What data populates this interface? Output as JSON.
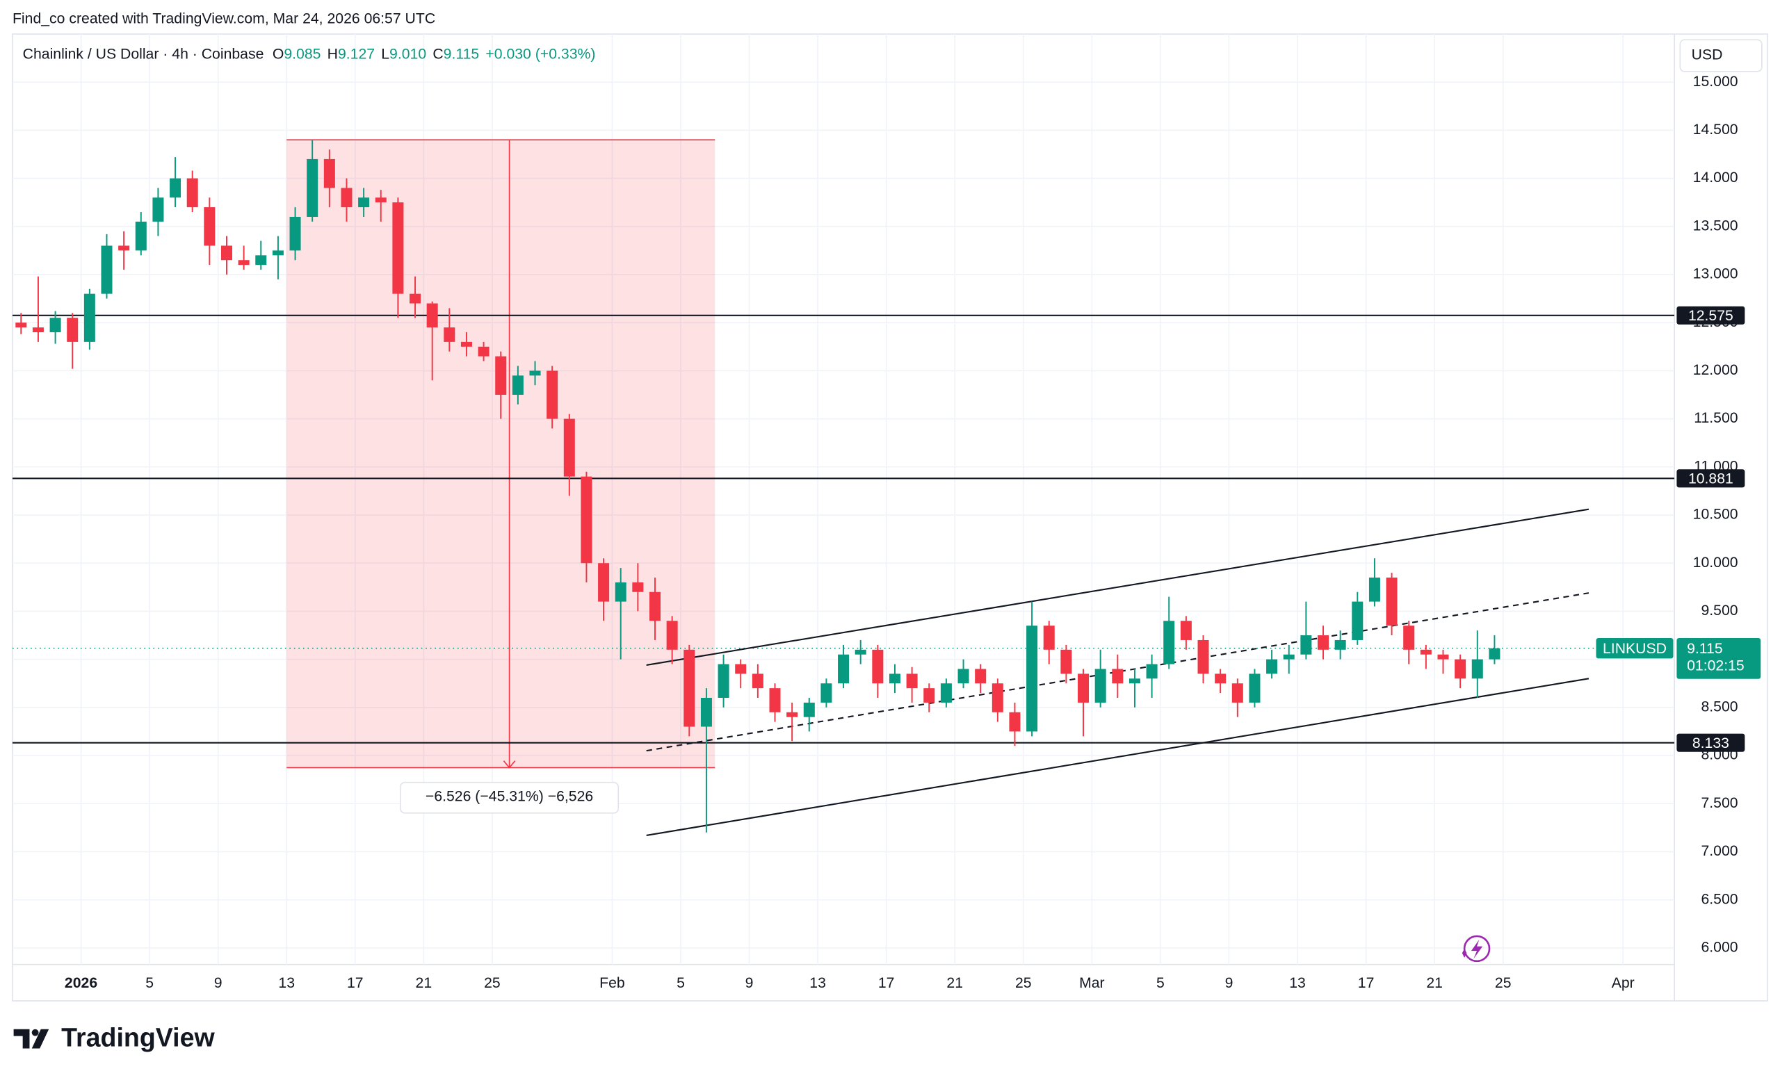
{
  "watermark": "Find_co created with TradingView.com, Mar 24, 2026 06:57 UTC",
  "brand": "TradingView",
  "chart_data": {
    "type": "candlestick",
    "legend": {
      "symbol": "Chainlink / US Dollar · 4h · Coinbase",
      "o_label": "O",
      "o": "9.085",
      "h_label": "H",
      "h": "9.127",
      "l_label": "L",
      "l": "9.010",
      "c_label": "C",
      "c": "9.115",
      "change": "+0.030 (+0.33%)"
    },
    "currency": "USD",
    "up_color": "#089981",
    "down_color": "#f23645",
    "grid": true,
    "xlim": [
      "2025-12-28",
      "2026-04-04"
    ],
    "ylim": [
      5.45,
      15.5
    ],
    "xticks": [
      {
        "value": "2026-01-01",
        "label": "2026"
      },
      {
        "value": "2026-01-05",
        "label": "5"
      },
      {
        "value": "2026-01-09",
        "label": "9"
      },
      {
        "value": "2026-01-13",
        "label": "13"
      },
      {
        "value": "2026-01-17",
        "label": "17"
      },
      {
        "value": "2026-01-21",
        "label": "21"
      },
      {
        "value": "2026-01-25",
        "label": "25"
      },
      {
        "value": "2026-02-01",
        "label": "Feb"
      },
      {
        "value": "2026-02-05",
        "label": "5"
      },
      {
        "value": "2026-02-09",
        "label": "9"
      },
      {
        "value": "2026-02-13",
        "label": "13"
      },
      {
        "value": "2026-02-17",
        "label": "17"
      },
      {
        "value": "2026-02-21",
        "label": "21"
      },
      {
        "value": "2026-02-25",
        "label": "25"
      },
      {
        "value": "2026-03-01",
        "label": "Mar"
      },
      {
        "value": "2026-03-05",
        "label": "5"
      },
      {
        "value": "2026-03-09",
        "label": "9"
      },
      {
        "value": "2026-03-13",
        "label": "13"
      },
      {
        "value": "2026-03-17",
        "label": "17"
      },
      {
        "value": "2026-03-21",
        "label": "21"
      },
      {
        "value": "2026-03-25",
        "label": "25"
      },
      {
        "value": "2026-04-01",
        "label": "Apr"
      }
    ],
    "yticks": [
      {
        "value": 6,
        "label": "6.000"
      },
      {
        "value": 6.5,
        "label": "6.500"
      },
      {
        "value": 7,
        "label": "7.000"
      },
      {
        "value": 7.5,
        "label": "7.500"
      },
      {
        "value": 8,
        "label": "8.000"
      },
      {
        "value": 8.5,
        "label": "8.500"
      },
      {
        "value": 9,
        "label": "9.000"
      },
      {
        "value": 9.5,
        "label": "9.500"
      },
      {
        "value": 10,
        "label": "10.000"
      },
      {
        "value": 10.5,
        "label": "10.500"
      },
      {
        "value": 11,
        "label": "11.000"
      },
      {
        "value": 11.5,
        "label": "11.500"
      },
      {
        "value": 12,
        "label": "12.000"
      },
      {
        "value": 12.5,
        "label": "12.500"
      },
      {
        "value": 13,
        "label": "13.000"
      },
      {
        "value": 13.5,
        "label": "13.500"
      },
      {
        "value": 14,
        "label": "14.000"
      },
      {
        "value": 14.5,
        "label": "14.500"
      },
      {
        "value": 15,
        "label": "15.000"
      }
    ],
    "x": [
      "2025-12-28",
      "2025-12-29",
      "2025-12-30",
      "2025-12-31",
      "2026-01-01",
      "2026-01-02",
      "2026-01-03",
      "2026-01-04",
      "2026-01-05",
      "2026-01-06",
      "2026-01-07",
      "2026-01-08",
      "2026-01-09",
      "2026-01-10",
      "2026-01-11",
      "2026-01-12",
      "2026-01-13",
      "2026-01-14",
      "2026-01-15",
      "2026-01-16",
      "2026-01-17",
      "2026-01-18",
      "2026-01-19",
      "2026-01-20",
      "2026-01-21",
      "2026-01-22",
      "2026-01-23",
      "2026-01-24",
      "2026-01-25",
      "2026-01-26",
      "2026-01-27",
      "2026-01-28",
      "2026-01-29",
      "2026-01-30",
      "2026-01-31",
      "2026-02-01",
      "2026-02-02",
      "2026-02-03",
      "2026-02-04",
      "2026-02-05",
      "2026-02-06",
      "2026-02-07",
      "2026-02-08",
      "2026-02-09",
      "2026-02-10",
      "2026-02-11",
      "2026-02-12",
      "2026-02-13",
      "2026-02-14",
      "2026-02-15",
      "2026-02-16",
      "2026-02-17",
      "2026-02-18",
      "2026-02-19",
      "2026-02-20",
      "2026-02-21",
      "2026-02-22",
      "2026-02-23",
      "2026-02-24",
      "2026-02-25",
      "2026-02-26",
      "2026-02-27",
      "2026-02-28",
      "2026-03-01",
      "2026-03-02",
      "2026-03-03",
      "2026-03-04",
      "2026-03-05",
      "2026-03-06",
      "2026-03-07",
      "2026-03-08",
      "2026-03-09",
      "2026-03-10",
      "2026-03-11",
      "2026-03-12",
      "2026-03-13",
      "2026-03-14",
      "2026-03-15",
      "2026-03-16",
      "2026-03-17",
      "2026-03-18",
      "2026-03-19",
      "2026-03-20",
      "2026-03-21",
      "2026-03-22",
      "2026-03-23",
      "2026-03-24"
    ],
    "open": [
      12.5,
      12.45,
      12.4,
      12.55,
      12.3,
      12.8,
      13.3,
      13.25,
      13.55,
      13.8,
      14.0,
      13.7,
      13.3,
      13.15,
      13.1,
      13.2,
      13.25,
      13.6,
      14.2,
      13.9,
      13.7,
      13.8,
      13.75,
      12.8,
      12.7,
      12.45,
      12.3,
      12.25,
      12.15,
      11.75,
      11.95,
      12.0,
      11.5,
      10.9,
      10.0,
      9.6,
      9.8,
      9.7,
      9.4,
      9.1,
      8.3,
      8.6,
      8.95,
      8.85,
      8.7,
      8.45,
      8.4,
      8.55,
      8.75,
      9.05,
      9.1,
      8.75,
      8.85,
      8.7,
      8.55,
      8.75,
      8.9,
      8.75,
      8.45,
      8.25,
      9.35,
      9.1,
      8.85,
      8.55,
      8.9,
      8.75,
      8.8,
      8.95,
      9.4,
      9.2,
      8.85,
      8.75,
      8.55,
      8.85,
      9.0,
      9.05,
      9.25,
      9.1,
      9.2,
      9.6,
      9.85,
      9.35,
      9.1,
      9.05,
      9.0,
      8.8,
      9.0
    ],
    "high": [
      12.6,
      12.98,
      12.62,
      12.6,
      12.85,
      13.42,
      13.45,
      13.65,
      13.9,
      14.22,
      14.08,
      13.8,
      13.4,
      13.3,
      13.35,
      13.4,
      13.7,
      14.4,
      14.3,
      14.0,
      13.9,
      13.88,
      13.8,
      12.98,
      12.72,
      12.65,
      12.4,
      12.3,
      12.2,
      12.05,
      12.1,
      12.05,
      11.55,
      10.95,
      10.05,
      9.95,
      10.0,
      9.85,
      9.45,
      9.15,
      8.7,
      9.05,
      9.0,
      8.95,
      8.75,
      8.55,
      8.6,
      8.8,
      9.15,
      9.2,
      9.15,
      8.95,
      8.92,
      8.75,
      8.8,
      9.0,
      8.95,
      8.8,
      8.55,
      9.6,
      9.4,
      9.15,
      8.9,
      9.1,
      9.05,
      8.9,
      9.05,
      9.65,
      9.45,
      9.25,
      8.9,
      8.8,
      8.9,
      9.1,
      9.15,
      9.6,
      9.35,
      9.3,
      9.7,
      10.05,
      9.9,
      9.4,
      9.15,
      9.1,
      9.05,
      9.3,
      9.25
    ],
    "low": [
      12.38,
      12.3,
      12.28,
      12.02,
      12.22,
      12.75,
      13.05,
      13.2,
      13.4,
      13.7,
      13.65,
      13.1,
      13.0,
      13.05,
      13.05,
      12.95,
      13.15,
      13.55,
      13.7,
      13.55,
      13.6,
      13.55,
      12.55,
      12.55,
      11.9,
      12.2,
      12.15,
      12.1,
      11.5,
      11.65,
      11.85,
      11.4,
      10.7,
      9.8,
      9.4,
      9.0,
      9.5,
      9.2,
      8.95,
      8.2,
      7.2,
      8.5,
      8.7,
      8.6,
      8.35,
      8.15,
      8.25,
      8.5,
      8.7,
      8.95,
      8.6,
      8.65,
      8.55,
      8.45,
      8.5,
      8.7,
      8.65,
      8.35,
      8.1,
      8.2,
      8.95,
      8.75,
      8.2,
      8.5,
      8.6,
      8.5,
      8.6,
      8.9,
      9.1,
      8.75,
      8.65,
      8.4,
      8.5,
      8.8,
      8.85,
      9.0,
      9.0,
      9.0,
      9.15,
      9.55,
      9.25,
      8.95,
      8.9,
      8.85,
      8.7,
      8.6,
      8.95
    ],
    "close": [
      12.45,
      12.4,
      12.55,
      12.3,
      12.8,
      13.3,
      13.25,
      13.55,
      13.8,
      14.0,
      13.7,
      13.3,
      13.15,
      13.1,
      13.2,
      13.25,
      13.6,
      14.2,
      13.9,
      13.7,
      13.8,
      13.75,
      12.8,
      12.7,
      12.45,
      12.3,
      12.25,
      12.15,
      11.75,
      11.95,
      12.0,
      11.5,
      10.9,
      10.0,
      9.6,
      9.8,
      9.7,
      9.4,
      9.1,
      8.3,
      8.6,
      8.95,
      8.85,
      8.7,
      8.45,
      8.4,
      8.55,
      8.75,
      9.05,
      9.1,
      8.75,
      8.85,
      8.7,
      8.55,
      8.75,
      8.9,
      8.75,
      8.45,
      8.25,
      9.35,
      9.1,
      8.85,
      8.55,
      8.9,
      8.75,
      8.8,
      8.95,
      9.4,
      9.2,
      8.85,
      8.75,
      8.55,
      8.85,
      9.0,
      9.05,
      9.25,
      9.1,
      9.2,
      9.6,
      9.85,
      9.35,
      9.1,
      9.05,
      9.0,
      8.8,
      9.0,
      9.115
    ],
    "horizontal_lines": [
      12.575,
      10.881,
      8.133
    ],
    "price_line": {
      "name": "LINKUSD",
      "value": 9.115,
      "countdown": "01:02:15",
      "color": "#089981"
    },
    "trend_lines": [
      {
        "style": "solid",
        "points": [
          [
            "2026-02-03",
            8.94
          ],
          [
            "2026-03-30",
            10.56
          ]
        ]
      },
      {
        "style": "dashed",
        "points": [
          [
            "2026-02-03",
            8.05
          ],
          [
            "2026-03-30",
            9.69
          ]
        ]
      },
      {
        "style": "solid",
        "points": [
          [
            "2026-02-03",
            7.17
          ],
          [
            "2026-03-30",
            8.8
          ]
        ]
      }
    ],
    "measure": {
      "from": "2026-01-13",
      "to": "2026-02-07",
      "arrow_at": "2026-01-26",
      "high": 14.4,
      "low": 7.874,
      "label": "−6.526 (−45.31%) −6,526"
    }
  }
}
